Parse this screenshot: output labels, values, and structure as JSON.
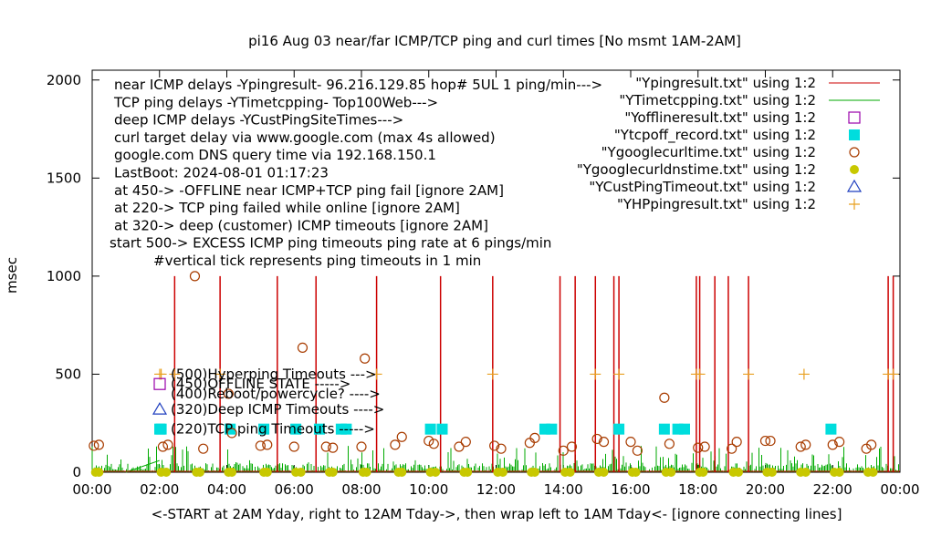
{
  "chart_data": {
    "type": "scatter",
    "title": "pi16 Aug 03  near/far ICMP/TCP ping and curl times [No msmt 1AM-2AM]",
    "xlabel": "<-START at 2AM Yday, right to 12AM Tday->, then wrap left to 1AM Tday<- [ignore connecting lines]",
    "ylabel": "msec",
    "xlim": [
      0,
      24
    ],
    "ylim": [
      0,
      2050
    ],
    "x_ticks": [
      "00:00",
      "02:00",
      "04:00",
      "06:00",
      "08:00",
      "10:00",
      "12:00",
      "14:00",
      "16:00",
      "18:00",
      "20:00",
      "22:00",
      "00:00"
    ],
    "y_ticks": [
      "0",
      "500",
      "1000",
      "1500",
      "2000"
    ],
    "notes": [
      "near ICMP delays -Ypingresult- 96.216.129.85 hop# 5UL 1 ping/min--->",
      "TCP ping delays -YTimetcpping- Top100Web--->",
      "deep ICMP delays -YCustPingSiteTimes--->",
      "curl target delay via www.google.com (max 4s allowed)",
      "google.com DNS query time via 192.168.150.1",
      "LastBoot: 2024-08-01 01:17:23",
      "at 450-> -OFFLINE near ICMP+TCP ping fail [ignore 2AM]",
      "at 220-> TCP ping failed while online [ignore 2AM]",
      "at 320-> deep (customer) ICMP timeouts [ignore 2AM]",
      "start 500-> EXCESS ICMP ping timeouts ping rate at 6 pings/min",
      "#vertical tick represents ping timeouts in 1 min"
    ],
    "legend": [
      {
        "name": "\"Ypingresult.txt\" using 1:2",
        "color": "#cc0000",
        "symbol": "line"
      },
      {
        "name": "\"YTimetcpping.txt\" using 1:2",
        "color": "#00aa00",
        "symbol": "line"
      },
      {
        "name": "\"Yofflineresult.txt\" using 1:2",
        "color": "#9900aa",
        "symbol": "open-square"
      },
      {
        "name": "\"Ytcpoff_record.txt\" using 1:2",
        "color": "#00dddd",
        "symbol": "filled-square"
      },
      {
        "name": "\"Ygooglecurltime.txt\" using 1:2",
        "color": "#a83c00",
        "symbol": "open-circle"
      },
      {
        "name": "\"Ygooglecurldnstime.txt\" using 1:2",
        "color": "#c8c800",
        "symbol": "filled-circle"
      },
      {
        "name": "\"YCustPingTimeout.txt\" using 1:2",
        "color": "#1f3fbf",
        "symbol": "open-triangle"
      },
      {
        "name": "\"YHPpingresult.txt\" using 1:2",
        "color": "#e8a020",
        "symbol": "plus"
      }
    ],
    "key_labels": [
      {
        "text": "(500)Hyperping Timeouts --->",
        "symbol": "plus",
        "color": "#e8a020",
        "y": 500
      },
      {
        "text": "(450)OFFLINE STATE ----->",
        "symbol": "open-square",
        "color": "#9900aa",
        "y": 450
      },
      {
        "text": "(400)Reboot/powercycle? ---->",
        "symbol": "none",
        "color": "#000000",
        "y": 400
      },
      {
        "text": "(320)Deep ICMP Timeouts ---->",
        "symbol": "open-triangle",
        "color": "#1f3fbf",
        "y": 320
      },
      {
        "text": "(220)TCP ping Timeouts ----->",
        "symbol": "filled-square",
        "color": "#00dddd",
        "y": 220
      }
    ],
    "series": {
      "ping_timeout_spikes_x": [
        2.45,
        3.8,
        5.5,
        6.65,
        8.45,
        10.35,
        11.9,
        13.9,
        14.35,
        14.95,
        15.5,
        15.65,
        17.95,
        18.05,
        18.5,
        18.9,
        19.5,
        23.65,
        23.8
      ],
      "ping_timeout_spikes_y": 1000,
      "tcpoff_x": [
        2.05,
        4.1,
        5.1,
        6.05,
        6.75,
        7.4,
        7.55,
        10.05,
        10.4,
        13.45,
        13.65,
        15.65,
        17.0,
        17.4,
        17.6,
        21.95
      ],
      "tcpoff_y": 220,
      "hyperping_x": [
        2.05,
        2.45,
        3.8,
        8.45,
        11.9,
        14.95,
        15.65,
        17.95,
        18.05,
        19.5,
        21.15,
        23.65,
        23.8
      ],
      "hyperping_y": 500,
      "curl_x": [
        0.05,
        0.2,
        2.1,
        2.25,
        3.05,
        3.3,
        4.05,
        4.15,
        5.0,
        5.2,
        6.0,
        6.25,
        6.95,
        7.15,
        8.0,
        8.1,
        9.0,
        9.2,
        10.0,
        10.15,
        10.9,
        11.1,
        11.95,
        12.15,
        13.0,
        13.15,
        14.0,
        14.25,
        15.0,
        15.2,
        16.0,
        16.2,
        17.0,
        17.15,
        18.0,
        18.2,
        19.0,
        19.15,
        20.0,
        20.15,
        21.05,
        21.2,
        22.0,
        22.2,
        23.0,
        23.15
      ],
      "curl_y": [
        135,
        140,
        130,
        140,
        1000,
        120,
        400,
        200,
        135,
        140,
        130,
        635,
        130,
        125,
        130,
        580,
        140,
        180,
        160,
        145,
        130,
        155,
        135,
        120,
        150,
        175,
        110,
        130,
        170,
        155,
        155,
        110,
        380,
        145,
        125,
        130,
        120,
        155,
        160,
        160,
        130,
        140,
        140,
        155,
        120,
        140
      ],
      "dns_x": [
        0.1,
        0.2,
        2.05,
        2.2,
        3.1,
        3.2,
        4.05,
        4.15,
        5.1,
        5.2,
        6.05,
        6.2,
        7.05,
        7.15,
        8.05,
        8.15,
        9.1,
        9.2,
        10.05,
        10.2,
        11.05,
        11.15,
        12.05,
        12.2,
        13.05,
        13.15,
        14.05,
        14.2,
        15.05,
        15.2,
        16.05,
        16.15,
        17.05,
        17.2,
        18.05,
        18.15,
        19.05,
        19.2,
        20.05,
        20.2,
        21.05,
        21.2,
        22.05,
        22.2,
        23.05,
        23.2
      ],
      "dns_y": 0
    }
  }
}
